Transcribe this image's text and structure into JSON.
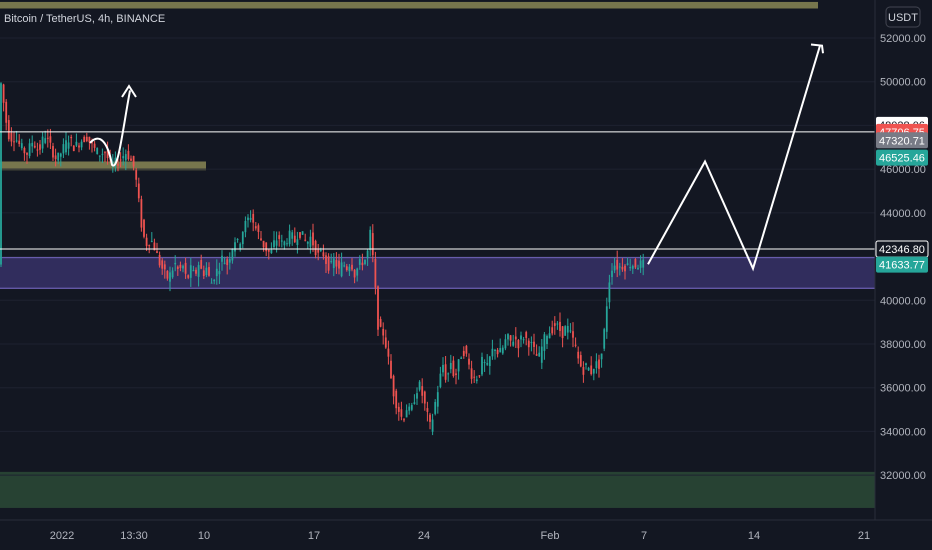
{
  "header": {
    "symbol_label": "Bitcoin / TetherUS, 4h, BINANCE",
    "currency": "USDT"
  },
  "colors": {
    "background": "#131722",
    "up": "#26a69a",
    "down": "#ef5350",
    "zone_olive": "#8a8755",
    "zone_purple": "#4b3f8e",
    "zone_green": "#2c4a36",
    "drawing": "#ffffff"
  },
  "chart_data": {
    "type": "candlestick",
    "title": "Bitcoin / TetherUS, 4h, BINANCE",
    "ylabel": "USDT",
    "ylim": [
      30500,
      53700
    ],
    "y_ticks": [
      32000,
      34000,
      36000,
      38000,
      40000,
      42000,
      44000,
      46000,
      48000,
      50000,
      52000
    ],
    "y_tick_labels": [
      "32000.00",
      "34000.00",
      "36000.00",
      "38000.00",
      "40000.00",
      "42000.00",
      "44000.00",
      "46000.00",
      "48000.00",
      "50000.00",
      "52000.00"
    ],
    "x_tick_labels": [
      "2022",
      "13:30",
      "10",
      "17",
      "24",
      "Feb",
      "7",
      "14",
      "21"
    ],
    "price_path": [
      [
        0,
        51600
      ],
      [
        2,
        50000
      ],
      [
        5,
        49000
      ],
      [
        8,
        48000
      ],
      [
        11,
        47400
      ],
      [
        16,
        47500
      ],
      [
        22,
        47000
      ],
      [
        28,
        46700
      ],
      [
        34,
        47300
      ],
      [
        40,
        46800
      ],
      [
        46,
        47600
      ],
      [
        52,
        47000
      ],
      [
        58,
        46400
      ],
      [
        64,
        46900
      ],
      [
        70,
        47400
      ],
      [
        76,
        47000
      ],
      [
        82,
        47300
      ],
      [
        88,
        47500
      ],
      [
        94,
        47000
      ],
      [
        100,
        46700
      ],
      [
        106,
        46800
      ],
      [
        112,
        46200
      ],
      [
        118,
        46300
      ],
      [
        124,
        46600
      ],
      [
        128,
        46800
      ],
      [
        132,
        46400
      ],
      [
        136,
        46000
      ],
      [
        140,
        44500
      ],
      [
        144,
        43000
      ],
      [
        148,
        42600
      ],
      [
        152,
        42800
      ],
      [
        156,
        42400
      ],
      [
        160,
        41800
      ],
      [
        164,
        41400
      ],
      [
        168,
        41000
      ],
      [
        172,
        41200
      ],
      [
        176,
        41700
      ],
      [
        180,
        41300
      ],
      [
        184,
        41600
      ],
      [
        188,
        40900
      ],
      [
        192,
        41400
      ],
      [
        196,
        41100
      ],
      [
        200,
        41700
      ],
      [
        204,
        41200
      ],
      [
        208,
        41500
      ],
      [
        212,
        40700
      ],
      [
        216,
        41200
      ],
      [
        220,
        41500
      ],
      [
        224,
        42000
      ],
      [
        228,
        41600
      ],
      [
        232,
        42200
      ],
      [
        236,
        42800
      ],
      [
        240,
        42500
      ],
      [
        244,
        43200
      ],
      [
        248,
        43600
      ],
      [
        252,
        43900
      ],
      [
        256,
        43400
      ],
      [
        260,
        43000
      ],
      [
        264,
        42600
      ],
      [
        268,
        42300
      ],
      [
        272,
        42100
      ],
      [
        276,
        42700
      ],
      [
        280,
        42900
      ],
      [
        284,
        42500
      ],
      [
        288,
        42800
      ],
      [
        292,
        43000
      ],
      [
        296,
        42700
      ],
      [
        300,
        43200
      ],
      [
        304,
        42900
      ],
      [
        308,
        42600
      ],
      [
        312,
        42900
      ],
      [
        316,
        42400
      ],
      [
        320,
        42000
      ],
      [
        324,
        42200
      ],
      [
        328,
        41700
      ],
      [
        332,
        41500
      ],
      [
        336,
        41900
      ],
      [
        340,
        41300
      ],
      [
        344,
        41700
      ],
      [
        348,
        41500
      ],
      [
        352,
        41800
      ],
      [
        356,
        41200
      ],
      [
        360,
        41600
      ],
      [
        364,
        41800
      ],
      [
        368,
        41900
      ],
      [
        372,
        43200
      ],
      [
        376,
        40800
      ],
      [
        380,
        38500
      ],
      [
        384,
        38600
      ],
      [
        388,
        37800
      ],
      [
        392,
        36500
      ],
      [
        396,
        35500
      ],
      [
        400,
        35000
      ],
      [
        404,
        34500
      ],
      [
        408,
        35100
      ],
      [
        412,
        34800
      ],
      [
        416,
        35600
      ],
      [
        420,
        36200
      ],
      [
        424,
        35600
      ],
      [
        428,
        34800
      ],
      [
        432,
        34100
      ],
      [
        436,
        35200
      ],
      [
        440,
        36100
      ],
      [
        444,
        37100
      ],
      [
        448,
        36300
      ],
      [
        452,
        37200
      ],
      [
        456,
        36400
      ],
      [
        460,
        37100
      ],
      [
        464,
        37800
      ],
      [
        468,
        37400
      ],
      [
        472,
        36700
      ],
      [
        476,
        36400
      ],
      [
        480,
        36600
      ],
      [
        484,
        37300
      ],
      [
        488,
        36800
      ],
      [
        492,
        37500
      ],
      [
        496,
        37900
      ],
      [
        500,
        37500
      ],
      [
        504,
        37800
      ],
      [
        508,
        38300
      ],
      [
        512,
        38100
      ],
      [
        516,
        38300
      ],
      [
        520,
        38000
      ],
      [
        524,
        38400
      ],
      [
        528,
        38200
      ],
      [
        532,
        38000
      ],
      [
        536,
        37600
      ],
      [
        540,
        37300
      ],
      [
        544,
        38000
      ],
      [
        548,
        38500
      ],
      [
        552,
        38600
      ],
      [
        556,
        38900
      ],
      [
        560,
        38700
      ],
      [
        564,
        38500
      ],
      [
        568,
        38800
      ],
      [
        572,
        38400
      ],
      [
        576,
        38000
      ],
      [
        580,
        37200
      ],
      [
        584,
        36800
      ],
      [
        588,
        37000
      ],
      [
        592,
        36700
      ],
      [
        596,
        37100
      ],
      [
        600,
        37000
      ],
      [
        604,
        37800
      ],
      [
        608,
        39800
      ],
      [
        612,
        41500
      ],
      [
        616,
        41650
      ],
      [
        620,
        41500
      ],
      [
        624,
        41600
      ],
      [
        628,
        41550
      ],
      [
        632,
        41700
      ],
      [
        636,
        41600
      ],
      [
        640,
        41650
      ],
      [
        644,
        41640
      ]
    ],
    "horizontal_lines": [
      {
        "price": 47706.75,
        "color": "#ffffff"
      },
      {
        "price": 42346.8,
        "color": "#ffffff"
      }
    ],
    "zones": [
      {
        "name": "olive-top",
        "from": 53350,
        "to": 53650,
        "color": "#8a8755",
        "x_end": 818
      },
      {
        "name": "olive-mid",
        "from": 45950,
        "to": 46350,
        "color": "#8a8755",
        "x_end": 206
      },
      {
        "name": "purple",
        "from": 40550,
        "to": 41950,
        "color": "#4b3f8e",
        "x_end": 875
      },
      {
        "name": "green-bottom",
        "from": 30500,
        "to": 32150,
        "color": "#2c4a36",
        "x_end": 875
      }
    ],
    "price_labels": [
      {
        "text": "48028.06",
        "price": 48028.06,
        "bg": "#ffffff",
        "fg": "#131722"
      },
      {
        "text": "47706.75",
        "price": 47706.75,
        "bg": "#ef5350",
        "fg": "#ffffff"
      },
      {
        "text": "47320.71",
        "price": 47320.71,
        "bg": "#787b86",
        "fg": "#ffffff"
      },
      {
        "text": "46525.46",
        "price": 46525.46,
        "bg": "#26a69a",
        "fg": "#ffffff"
      },
      {
        "text": "42346.80",
        "price": 42346.8,
        "bg": "#131722",
        "fg": "#ffffff"
      },
      {
        "text": "41633.77",
        "price": 41633.77,
        "bg": "#26a69a",
        "fg": "#ffffff"
      }
    ]
  }
}
